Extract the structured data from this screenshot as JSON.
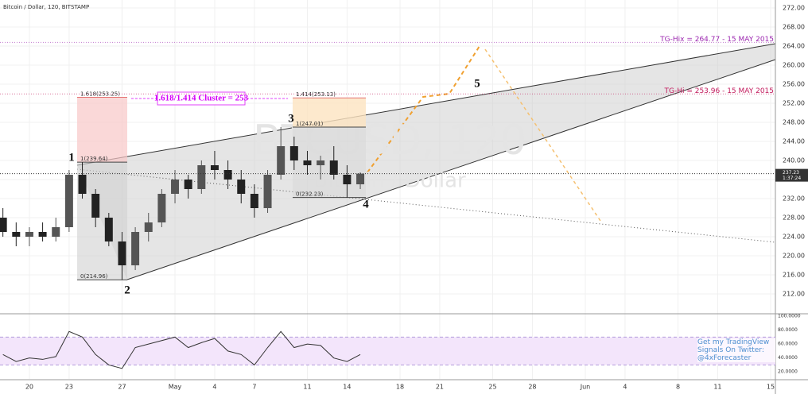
{
  "chart_data": [
    {
      "type": "candlestick",
      "title": "Bitcoin / Dollar, 120, BITSTAMP",
      "watermark": "BTCUSD, 120",
      "watermark_sub": "Bitcoin / Dollar",
      "up_color": "#555555",
      "down_color": "#222222",
      "x": [
        -2,
        -1,
        0,
        1,
        2,
        3,
        4,
        5,
        6,
        7,
        8,
        9,
        10,
        11,
        12,
        13,
        14,
        15,
        16,
        17,
        18,
        19,
        20,
        21,
        22,
        23,
        24,
        25
      ],
      "open": [
        228,
        225,
        224,
        225,
        224,
        226,
        237,
        233,
        228,
        223,
        218,
        225,
        227,
        233,
        236,
        234,
        239,
        238,
        236,
        233,
        230,
        237,
        243,
        240,
        239,
        240,
        237,
        235
      ],
      "high": [
        230,
        227,
        226,
        227,
        228,
        238,
        239.64,
        234,
        229,
        225,
        226,
        229,
        234,
        238,
        237,
        240,
        242,
        240,
        238,
        235,
        238,
        247.01,
        245,
        242,
        241,
        243,
        239,
        237.5
      ],
      "low": [
        224,
        222,
        222,
        223,
        223,
        225,
        232,
        226,
        222,
        214.96,
        217,
        223,
        226,
        231,
        232,
        233,
        236,
        234,
        231,
        228,
        229,
        236,
        238,
        237,
        236,
        236,
        232.23,
        234
      ],
      "close": [
        225,
        224,
        225,
        224,
        226,
        237,
        233,
        228,
        223,
        218,
        225,
        227,
        233,
        236,
        234,
        239,
        238,
        236,
        233,
        230,
        237,
        243,
        240,
        239,
        240,
        237,
        235,
        237.23
      ],
      "xlim": [
        -2.22,
        56.36
      ],
      "xticks": [
        {
          "value": 0,
          "label": "20"
        },
        {
          "value": 3,
          "label": "23"
        },
        {
          "value": 7,
          "label": "27"
        },
        {
          "value": 11,
          "label": "May"
        },
        {
          "value": 14,
          "label": "4"
        },
        {
          "value": 17,
          "label": "7"
        },
        {
          "value": 21,
          "label": "11"
        },
        {
          "value": 24,
          "label": "14"
        },
        {
          "value": 28,
          "label": "18"
        },
        {
          "value": 31,
          "label": "21"
        },
        {
          "value": 35,
          "label": "25"
        },
        {
          "value": 38,
          "label": "28"
        },
        {
          "value": 42,
          "label": "Jun"
        },
        {
          "value": 45,
          "label": "4"
        },
        {
          "value": 49,
          "label": "8"
        },
        {
          "value": 52,
          "label": "11"
        },
        {
          "value": 56,
          "label": "15"
        }
      ],
      "ylim": [
        208,
        273.67
      ],
      "yticks": [
        {
          "value": 212,
          "label": "212.00"
        },
        {
          "value": 216,
          "label": "216.00"
        },
        {
          "value": 220,
          "label": "220.00"
        },
        {
          "value": 224,
          "label": "224.00"
        },
        {
          "value": 228,
          "label": "228.00"
        },
        {
          "value": 232,
          "label": "232.00"
        },
        {
          "value": 236,
          "label": "236.00"
        },
        {
          "value": 240,
          "label": "240.00"
        },
        {
          "value": 244,
          "label": "244.00"
        },
        {
          "value": 248,
          "label": "248.00"
        },
        {
          "value": 252,
          "label": "252.00"
        },
        {
          "value": 256,
          "label": "256.00"
        },
        {
          "value": 260,
          "label": "260.00"
        },
        {
          "value": 264,
          "label": "264.00"
        },
        {
          "value": 268,
          "label": "268.00"
        },
        {
          "value": 272,
          "label": "272.00"
        }
      ],
      "current_price": 237.23,
      "timer": "1:37:24",
      "levels": [
        {
          "value": 264.77,
          "label": "TG-Hix = 264.77 - 15 MAY 2015",
          "color": "#9c27b0"
        },
        {
          "value": 253.96,
          "label": "TG-Hi = 253.96 - 15 MAY 2015",
          "color": "#c2185b"
        }
      ],
      "fibs": [
        {
          "value": 253.25,
          "label": "1.618(253.25)"
        },
        {
          "value": 239.64,
          "label": "1(239.64)"
        },
        {
          "value": 214.96,
          "label": "0(214.96)"
        },
        {
          "value": 253.13,
          "label": "1.414(253.13)"
        },
        {
          "value": 247.01,
          "label": "1(247.01)"
        },
        {
          "value": 232.23,
          "label": "0(232.23)"
        }
      ],
      "cluster_label": "1.618/1.414 Cluster = 253",
      "wave_labels": [
        "1",
        "2",
        "3",
        "4",
        "5"
      ],
      "note": "Get my TradingView Signals On Twitter: @4xForecaster"
    },
    {
      "type": "line",
      "color": "#333333",
      "x": [
        -2,
        -1,
        0,
        1,
        2,
        3,
        4,
        5,
        6,
        7,
        8,
        9,
        10,
        11,
        12,
        13,
        14,
        15,
        16,
        17,
        18,
        19,
        20,
        21,
        22,
        23,
        24,
        25
      ],
      "values": [
        45,
        35,
        40,
        38,
        42,
        78,
        70,
        45,
        30,
        25,
        55,
        60,
        65,
        70,
        55,
        62,
        68,
        50,
        45,
        30,
        55,
        78,
        55,
        60,
        58,
        40,
        35,
        45
      ],
      "bands": [
        30,
        70
      ],
      "ylim": [
        10,
        102.3
      ],
      "yticks": [
        {
          "value": 20,
          "label": "20.0000"
        },
        {
          "value": 40,
          "label": "40.0000"
        },
        {
          "value": 60,
          "label": "60.0000"
        },
        {
          "value": 80,
          "label": "80.0000"
        },
        {
          "value": 100,
          "label": "100.0000"
        }
      ]
    }
  ]
}
